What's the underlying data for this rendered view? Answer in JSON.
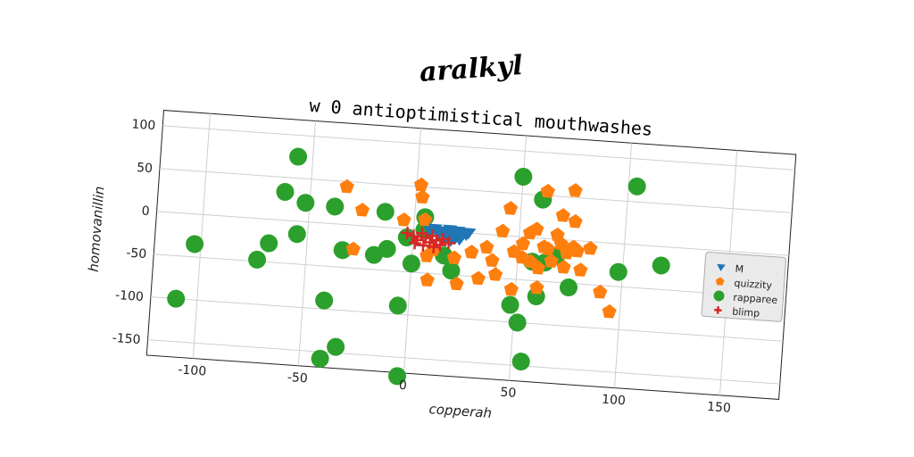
{
  "suptitle": "aralkyl",
  "chart_data": {
    "type": "scatter",
    "title": "w 0 antioptimistical mouthwashes",
    "xlabel": "copperah",
    "ylabel": "homovanillin",
    "xlim": [
      -122,
      178
    ],
    "ylim": [
      -168,
      118
    ],
    "xticks": [
      -100,
      -50,
      0,
      50,
      100,
      150
    ],
    "yticks": [
      100,
      50,
      0,
      -50,
      -100,
      -150
    ],
    "grid": true,
    "legend_position": "right",
    "series": [
      {
        "name": "M",
        "marker": "triangle-down",
        "color": "#1f77b4",
        "points": [
          [
            8,
            -1
          ],
          [
            10,
            2
          ],
          [
            12,
            -3
          ],
          [
            14,
            0
          ],
          [
            16,
            -5
          ],
          [
            17,
            2
          ],
          [
            19,
            -2
          ],
          [
            20,
            -7
          ],
          [
            21,
            1
          ],
          [
            23,
            -4
          ],
          [
            24,
            0
          ],
          [
            25,
            -2
          ],
          [
            26,
            0
          ],
          [
            22,
            -8
          ],
          [
            18,
            -10
          ],
          [
            15,
            -6
          ]
        ]
      },
      {
        "name": "quizzity",
        "marker": "pentagon",
        "color": "#ff7f0e",
        "points": [
          [
            -33,
            44
          ],
          [
            -25,
            18
          ],
          [
            -28,
            -28
          ],
          [
            -5,
            10
          ],
          [
            2,
            52
          ],
          [
            3,
            38
          ],
          [
            5,
            12
          ],
          [
            7,
            -30
          ],
          [
            8,
            -58
          ],
          [
            10,
            -22
          ],
          [
            15,
            -8
          ],
          [
            20,
            -30
          ],
          [
            22,
            -60
          ],
          [
            28,
            -22
          ],
          [
            32,
            -52
          ],
          [
            35,
            -15
          ],
          [
            38,
            -30
          ],
          [
            40,
            -46
          ],
          [
            42,
            5
          ],
          [
            45,
            32
          ],
          [
            48,
            -18
          ],
          [
            48,
            -62
          ],
          [
            52,
            -8
          ],
          [
            52,
            -24
          ],
          [
            55,
            5
          ],
          [
            56,
            -28
          ],
          [
            58,
            10
          ],
          [
            60,
            -35
          ],
          [
            60,
            -58
          ],
          [
            62,
            55
          ],
          [
            62,
            -10
          ],
          [
            64,
            -12
          ],
          [
            66,
            -26
          ],
          [
            68,
            5
          ],
          [
            70,
            28
          ],
          [
            70,
            -5
          ],
          [
            72,
            -32
          ],
          [
            73,
            -15
          ],
          [
            75,
            58
          ],
          [
            76,
            22
          ],
          [
            76,
            -8
          ],
          [
            78,
            -12
          ],
          [
            80,
            -34
          ],
          [
            84,
            -8
          ],
          [
            90,
            -58
          ],
          [
            95,
            -80
          ]
        ]
      },
      {
        "name": "rapparee",
        "marker": "circle",
        "color": "#2ca02c",
        "points": [
          [
            -110,
            -100
          ],
          [
            -103,
            -35
          ],
          [
            -73,
            -48
          ],
          [
            -68,
            -28
          ],
          [
            -62,
            33
          ],
          [
            -57,
            75
          ],
          [
            -55,
            -15
          ],
          [
            -52,
            22
          ],
          [
            -40,
            -90
          ],
          [
            -38,
            20
          ],
          [
            -33,
            -30
          ],
          [
            -33,
            -143
          ],
          [
            -40,
            -158
          ],
          [
            -18,
            -33
          ],
          [
            -14,
            18
          ],
          [
            -12,
            -25
          ],
          [
            -5,
            -90
          ],
          [
            -3,
            -10
          ],
          [
            -3,
            -172
          ],
          [
            0,
            -40
          ],
          [
            5,
            15
          ],
          [
            5,
            0
          ],
          [
            15,
            -28
          ],
          [
            19,
            -45
          ],
          [
            50,
            70
          ],
          [
            48,
            -80
          ],
          [
            52,
            -100
          ],
          [
            55,
            -145
          ],
          [
            57,
            -28
          ],
          [
            60,
            45
          ],
          [
            60,
            -68
          ],
          [
            63,
            -28
          ],
          [
            68,
            -20
          ],
          [
            75,
            -55
          ],
          [
            98,
            -33
          ],
          [
            104,
            68
          ],
          [
            118,
            -22
          ]
        ]
      },
      {
        "name": "blimp",
        "marker": "plus",
        "color": "#d62728",
        "points": [
          [
            -3,
            -5
          ],
          [
            0,
            -8
          ],
          [
            2,
            -12
          ],
          [
            4,
            -4
          ],
          [
            6,
            -9
          ],
          [
            8,
            -14
          ],
          [
            9,
            -6
          ],
          [
            11,
            -11
          ],
          [
            13,
            -16
          ],
          [
            14,
            -9
          ],
          [
            17,
            -13
          ],
          [
            1,
            -16
          ],
          [
            5,
            -18
          ],
          [
            10,
            -19
          ]
        ]
      }
    ]
  }
}
